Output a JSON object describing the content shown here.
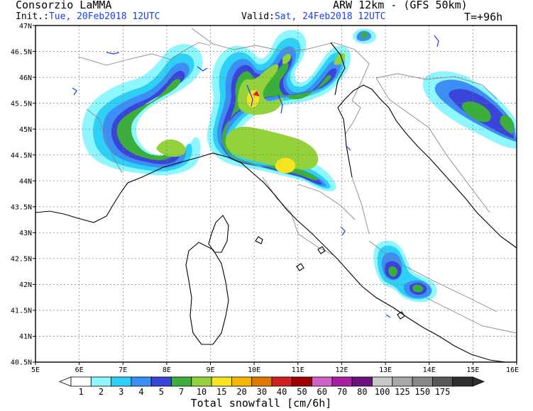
{
  "header": {
    "org": "Consorzio LaMMA",
    "model": "ARW 12km - (GFS 50km)",
    "init_label": "Init.:",
    "init_value": "Tue, 20Feb2018 12UTC",
    "valid_label": "Valid:",
    "valid_value": "Sat, 24Feb2018 12UTC",
    "lead": "T=+96h"
  },
  "map": {
    "lat_labels": [
      "47N",
      "46.5N",
      "46N",
      "45.5N",
      "45N",
      "44.5N",
      "44N",
      "43.5N",
      "43N",
      "42.5N",
      "42N",
      "41.5N",
      "41N",
      "40.5N"
    ],
    "lon_labels": [
      "5E",
      "6E",
      "7E",
      "8E",
      "9E",
      "10E",
      "11E",
      "12E",
      "13E",
      "14E",
      "15E",
      "16E"
    ],
    "colors": {
      "lightcyan": "#8ef6ff",
      "cyan": "#2fd0f5",
      "skyblue": "#3c8ef5",
      "blue": "#3a44d8",
      "green": "#3cae3c",
      "lightgreen": "#93d23a",
      "yellow": "#f7e420",
      "red": "#e02020",
      "coast": "#000000",
      "lakes": "#1a3cff",
      "borders": "#888888",
      "grid": "#7a7a7a"
    }
  },
  "colorbar": {
    "labels": [
      "1",
      "2",
      "3",
      "4",
      "5",
      "7",
      "10",
      "15",
      "20",
      "30",
      "40",
      "50",
      "60",
      "70",
      "80",
      "100",
      "125",
      "150",
      "175"
    ],
    "colors": [
      "#ffffff",
      "#8ef6ff",
      "#2fd0f5",
      "#3c8ef5",
      "#3a44d8",
      "#3cae3c",
      "#93d23a",
      "#f7e420",
      "#f5b400",
      "#e07800",
      "#d02020",
      "#a00000",
      "#d060c8",
      "#a820a0",
      "#6c1080",
      "#c8c8c8",
      "#a8a8a8",
      "#888888",
      "#585858",
      "#303030"
    ],
    "title": "Total snowfall [cm/6h]"
  }
}
